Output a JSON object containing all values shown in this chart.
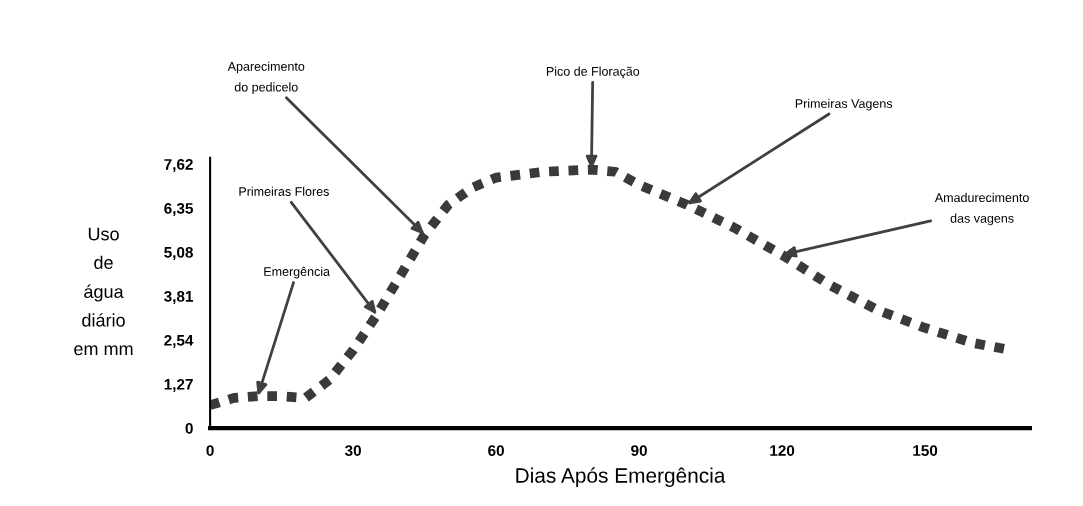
{
  "chart_data": {
    "type": "line",
    "xlabel": "Dias Após Emergência",
    "ylabel": "Uso\nde\nágua\ndiário\nem mm",
    "x": [
      0,
      5,
      10,
      15,
      20,
      25,
      30,
      35,
      40,
      45,
      50,
      55,
      60,
      70,
      80,
      85,
      90,
      100,
      110,
      120,
      130,
      140,
      150,
      160,
      168
    ],
    "series": [
      {
        "color": "#3a3a3a",
        "values": [
          0.66,
          0.87,
          0.92,
          0.92,
          0.87,
          1.39,
          2.25,
          3.27,
          4.42,
          5.58,
          6.45,
          6.94,
          7.23,
          7.4,
          7.46,
          7.4,
          7.02,
          6.45,
          5.78,
          5.0,
          4.13,
          3.41,
          2.89,
          2.46,
          2.25
        ]
      }
    ],
    "line_style": "dotted",
    "marker": "none",
    "xlim": [
      0,
      172
    ],
    "ylim": [
      0,
      7.8
    ],
    "xticks": [
      0,
      30,
      60,
      90,
      120,
      150
    ],
    "yticks": [
      0,
      {
        "value": 1.27,
        "label": "1,27"
      },
      {
        "value": 2.54,
        "label": "2,54"
      },
      {
        "value": 3.81,
        "label": "3,81"
      },
      {
        "value": 5.08,
        "label": "5,08"
      },
      {
        "value": 6.35,
        "label": "6,35"
      },
      {
        "value": 7.62,
        "label": "7,62"
      }
    ],
    "grid": false,
    "legend": false,
    "annotations": [
      {
        "text": "Emergência",
        "x": 10,
        "y": 0.92
      },
      {
        "text": "Primeiras Flores",
        "x": 35,
        "y": 3.27
      },
      {
        "text": "Aparecimento\ndo pedicelo",
        "x": 45,
        "y": 5.58
      },
      {
        "text": "Pico de Floração",
        "x": 80,
        "y": 7.46
      },
      {
        "text": "Primeiras Vagens",
        "x": 100,
        "y": 6.45
      },
      {
        "text": "Amadurecimento\ndas vagens",
        "x": 120,
        "y": 5.0
      }
    ]
  }
}
